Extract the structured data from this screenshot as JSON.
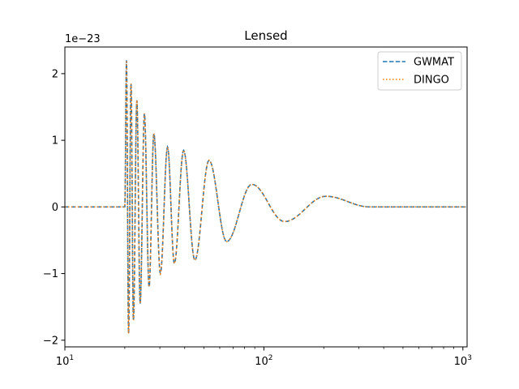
{
  "chart_data": {
    "type": "line",
    "title": "Lensed",
    "xlabel": "",
    "ylabel": "",
    "xscale": "log",
    "xlim": [
      10,
      1050
    ],
    "ylim": [
      -2.1,
      2.4
    ],
    "y_offset_label": "1e−23",
    "x_ticks": [
      {
        "value": 10,
        "base": "10",
        "exp": "1"
      },
      {
        "value": 100,
        "base": "10",
        "exp": "2"
      },
      {
        "value": 1000,
        "base": "10",
        "exp": "3"
      }
    ],
    "y_ticks": [
      {
        "value": -2,
        "label": "−2"
      },
      {
        "value": -1,
        "label": "−1"
      },
      {
        "value": 0,
        "label": "0"
      },
      {
        "value": 1,
        "label": "1"
      },
      {
        "value": 2,
        "label": "2"
      }
    ],
    "legend_position": "top-right",
    "grid": false,
    "series": [
      {
        "name": "GWMAT",
        "color": "#1f77b4",
        "style": "dashed"
      },
      {
        "name": "DINGO",
        "color": "#ff7f0e",
        "style": "dotted"
      }
    ],
    "extrema": [
      {
        "x": 20.0,
        "y": 0
      },
      {
        "x": 20.4,
        "y": 2.2
      },
      {
        "x": 20.9,
        "y": -1.9
      },
      {
        "x": 21.5,
        "y": 1.85
      },
      {
        "x": 22.1,
        "y": -1.7
      },
      {
        "x": 23.0,
        "y": 1.6
      },
      {
        "x": 23.9,
        "y": -1.45
      },
      {
        "x": 25.1,
        "y": 1.4
      },
      {
        "x": 26.5,
        "y": -1.2
      },
      {
        "x": 28.0,
        "y": 1.1
      },
      {
        "x": 30.2,
        "y": -1.0
      },
      {
        "x": 32.8,
        "y": 0.9
      },
      {
        "x": 35.5,
        "y": -0.85
      },
      {
        "x": 39.5,
        "y": 0.85
      },
      {
        "x": 45.0,
        "y": -0.8
      },
      {
        "x": 53.0,
        "y": 0.7
      },
      {
        "x": 65.0,
        "y": -0.52
      },
      {
        "x": 87.0,
        "y": 0.34
      },
      {
        "x": 127.0,
        "y": -0.22
      },
      {
        "x": 205.0,
        "y": 0.16
      },
      {
        "x": 340.0,
        "y": 0.0
      },
      {
        "x": 1050.0,
        "y": 0.0
      }
    ]
  }
}
